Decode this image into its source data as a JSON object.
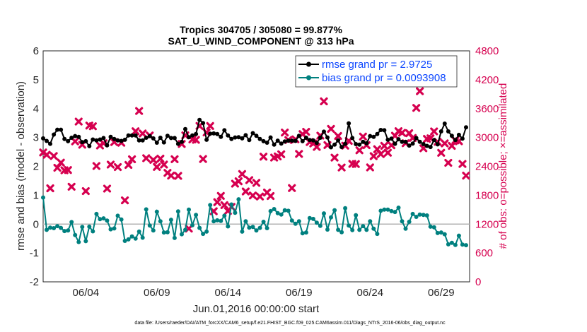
{
  "chart_data": {
    "type": "line",
    "title": "Tropics 304705 / 305080 = 99.877%",
    "subtitle": "SAT_U_WIND_COMPONENT @ 313 hPa",
    "xlabel": "Jun.01,2016 00:00:00 start",
    "ylabel": "rmse and bias (model - observation)",
    "ylabel_right": "# of obs: o=possible; ×=assimilated",
    "ylim": [
      -2,
      6
    ],
    "ylim_right": [
      0,
      4800
    ],
    "xlim": [
      1.0,
      31.0
    ],
    "y_ticks": [
      "-2",
      "-1",
      "0",
      "1",
      "2",
      "3",
      "4",
      "5",
      "6"
    ],
    "y_right_ticks": [
      "0",
      "600",
      "1200",
      "1800",
      "2400",
      "3000",
      "3600",
      "4200",
      "4800"
    ],
    "x_tick_labels": [
      "06/04",
      "06/09",
      "06/14",
      "06/19",
      "06/24",
      "06/29"
    ],
    "x_tick_values": [
      4,
      9,
      14,
      19,
      24,
      29
    ],
    "colors": {
      "rmse": "#000000",
      "bias": "#00807f",
      "obs": "#d6004f",
      "zero_line": "#b3b3b3",
      "legend_rmse_text": "#0d47ff",
      "legend_bias_text": "#0d47ff"
    },
    "series": [
      {
        "name": "rmse grand pr = 2.9725",
        "axis": "left",
        "marker": "circle",
        "x": [
          1.0,
          1.25,
          1.5,
          1.75,
          2.0,
          2.25,
          2.5,
          2.75,
          3.0,
          3.25,
          3.5,
          3.75,
          4.0,
          4.25,
          4.5,
          4.75,
          5.0,
          5.25,
          5.5,
          5.75,
          6.0,
          6.25,
          6.5,
          6.75,
          7.0,
          7.25,
          7.5,
          7.75,
          8.0,
          8.25,
          8.5,
          8.75,
          9.0,
          9.25,
          9.5,
          9.75,
          10.0,
          10.25,
          10.5,
          10.75,
          11.0,
          11.25,
          11.5,
          11.75,
          12.0,
          12.25,
          12.5,
          12.75,
          13.0,
          13.25,
          13.5,
          13.75,
          14.0,
          14.25,
          14.5,
          14.75,
          15.0,
          15.25,
          15.5,
          15.75,
          16.0,
          16.25,
          16.5,
          16.75,
          17.0,
          17.25,
          17.5,
          17.75,
          18.0,
          18.25,
          18.5,
          18.75,
          19.0,
          19.25,
          19.5,
          19.75,
          20.0,
          20.25,
          20.5,
          20.75,
          21.0,
          21.25,
          21.5,
          21.75,
          22.0,
          22.25,
          22.5,
          22.75,
          23.0,
          23.25,
          23.5,
          23.75,
          24.0,
          24.25,
          24.5,
          24.75,
          25.0,
          25.25,
          25.5,
          25.75,
          26.0,
          26.25,
          26.5,
          26.75,
          27.0,
          27.25,
          27.5,
          27.75,
          28.0,
          28.25,
          28.5,
          28.75,
          29.0,
          29.25,
          29.5,
          29.75,
          30.0,
          30.25,
          30.5,
          30.75
        ],
        "values": [
          2.97,
          2.88,
          2.78,
          3.1,
          3.27,
          3.27,
          2.95,
          2.87,
          2.99,
          3.05,
          3.02,
          2.84,
          2.87,
          2.7,
          2.93,
          2.9,
          2.93,
          2.98,
          2.73,
          3.02,
          2.95,
          2.9,
          2.88,
          2.92,
          3.07,
          3.07,
          3.07,
          2.9,
          2.9,
          2.99,
          3.05,
          2.97,
          2.82,
          2.99,
          2.83,
          3.06,
          2.98,
          2.98,
          2.78,
          2.85,
          3.29,
          3.01,
          3.07,
          3.12,
          3.61,
          3.5,
          2.92,
          3.13,
          3.14,
          3.12,
          3.02,
          3.25,
          3.07,
          2.95,
          3.0,
          3.01,
          2.97,
          3.08,
          2.91,
          3.15,
          3.06,
          2.95,
          2.87,
          2.82,
          3.0,
          2.75,
          2.89,
          2.79,
          2.86,
          2.89,
          2.89,
          2.88,
          3.06,
          2.87,
          2.99,
          2.91,
          2.9,
          2.81,
          2.99,
          3.2,
          3.0,
          2.66,
          2.75,
          2.9,
          2.67,
          2.78,
          3.49,
          2.98,
          2.77,
          2.75,
          2.85,
          2.8,
          3.05,
          3.02,
          3.12,
          3.26,
          3.25,
          2.92,
          2.96,
          2.78,
          2.94,
          2.85,
          2.85,
          2.72,
          2.79,
          2.98,
          2.85,
          2.77,
          2.71,
          2.67,
          2.91,
          2.76,
          3.21,
          3.48,
          3.21,
          3.06,
          2.91,
          3.09,
          2.96,
          3.35
        ]
      },
      {
        "name": "bias grand pr = 0.0093908",
        "axis": "left",
        "marker": "circle",
        "x": [
          1.0,
          1.25,
          1.5,
          1.75,
          2.0,
          2.25,
          2.5,
          2.75,
          3.0,
          3.25,
          3.5,
          3.75,
          4.0,
          4.25,
          4.5,
          4.75,
          5.0,
          5.25,
          5.5,
          5.75,
          6.0,
          6.25,
          6.5,
          6.75,
          7.0,
          7.25,
          7.5,
          7.75,
          8.0,
          8.25,
          8.5,
          8.75,
          9.0,
          9.25,
          9.5,
          9.75,
          10.0,
          10.25,
          10.5,
          10.75,
          11.0,
          11.25,
          11.5,
          11.75,
          12.0,
          12.25,
          12.5,
          12.75,
          13.0,
          13.25,
          13.5,
          13.75,
          14.0,
          14.25,
          14.5,
          14.75,
          15.0,
          15.25,
          15.5,
          15.75,
          16.0,
          16.25,
          16.5,
          16.75,
          17.0,
          17.25,
          17.5,
          17.75,
          18.0,
          18.25,
          18.5,
          18.75,
          19.0,
          19.25,
          19.5,
          19.75,
          20.0,
          20.25,
          20.5,
          20.75,
          21.0,
          21.25,
          21.5,
          21.75,
          22.0,
          22.25,
          22.5,
          22.75,
          23.0,
          23.25,
          23.5,
          23.75,
          24.0,
          24.25,
          24.5,
          24.75,
          25.0,
          25.25,
          25.5,
          25.75,
          26.0,
          26.25,
          26.5,
          26.75,
          27.0,
          27.25,
          27.5,
          27.75,
          28.0,
          28.25,
          28.5,
          28.75,
          29.0,
          29.25,
          29.5,
          29.75,
          30.0,
          30.25,
          30.5,
          30.75
        ],
        "values": [
          0.92,
          -0.2,
          -0.12,
          -0.14,
          -0.07,
          -0.13,
          -0.24,
          -0.22,
          0.07,
          -0.38,
          -0.62,
          -0.1,
          -0.59,
          -0.09,
          -0.25,
          0.35,
          0.17,
          0.2,
          0.12,
          -0.18,
          -0.15,
          0.29,
          0.16,
          -0.58,
          -0.53,
          -0.43,
          -0.5,
          -0.26,
          -0.47,
          0.51,
          -0.05,
          -0.22,
          0.43,
          0.1,
          -0.29,
          -0.28,
          0.15,
          -0.48,
          0.44,
          -0.35,
          -0.2,
          0.5,
          -0.04,
          0.32,
          -0.13,
          -0.34,
          -0.26,
          0.66,
          0.1,
          0.13,
          0.11,
          0.29,
          -0.08,
          0.68,
          0.39,
          0.86,
          -0.26,
          0.1,
          -0.12,
          -0.1,
          -0.22,
          -0.13,
          0.08,
          -0.14,
          0.45,
          0.52,
          0.38,
          0.33,
          0.48,
          0.46,
          0.12,
          0.01,
          0.1,
          -0.32,
          -0.29,
          0.21,
          0.18,
          0.05,
          -0.06,
          0.37,
          -0.19,
          0.23,
          0.48,
          -0.2,
          -0.28,
          0.55,
          -0.05,
          -0.21,
          0.31,
          -0.2,
          -0.07,
          -0.2,
          0.1,
          -0.16,
          -0.34,
          0.46,
          0.5,
          0.5,
          0.45,
          0.42,
          0.57,
          0.1,
          -0.16,
          0.08,
          0.35,
          0.25,
          0.33,
          0.32,
          0.3,
          -0.09,
          -0.11,
          -0.31,
          -0.29,
          -0.35,
          -0.7,
          -0.65,
          -0.72,
          -0.4,
          -0.71,
          -0.73
        ]
      },
      {
        "name": "# of obs assimilated",
        "axis": "right",
        "marker": "x",
        "x": [
          1.0,
          1.25,
          1.5,
          1.75,
          2.0,
          2.25,
          2.5,
          2.75,
          3.0,
          3.25,
          3.5,
          3.75,
          4.0,
          4.25,
          4.5,
          4.75,
          5.0,
          5.25,
          5.5,
          5.75,
          6.0,
          6.25,
          6.5,
          6.75,
          7.0,
          7.25,
          7.5,
          7.75,
          8.0,
          8.25,
          8.5,
          8.75,
          9.0,
          9.25,
          9.5,
          9.75,
          10.0,
          10.25,
          10.5,
          10.75,
          11.0,
          11.25,
          11.5,
          11.75,
          12.0,
          12.25,
          12.5,
          12.75,
          13.0,
          13.25,
          13.5,
          13.75,
          14.0,
          14.25,
          14.5,
          14.75,
          15.0,
          15.25,
          15.5,
          15.75,
          16.0,
          16.25,
          16.5,
          16.75,
          17.0,
          17.25,
          17.5,
          17.75,
          18.0,
          18.25,
          18.5,
          18.75,
          19.0,
          19.25,
          19.5,
          19.75,
          20.0,
          20.25,
          20.5,
          20.75,
          21.0,
          21.25,
          21.5,
          21.75,
          22.0,
          22.25,
          22.5,
          22.75,
          23.0,
          23.25,
          23.5,
          23.75,
          24.0,
          24.25,
          24.5,
          24.75,
          25.0,
          25.25,
          25.5,
          25.75,
          26.0,
          26.25,
          26.5,
          26.75,
          27.0,
          27.25,
          27.5,
          27.75,
          28.0,
          28.25,
          28.5,
          28.75,
          29.0,
          29.25,
          29.5,
          29.75,
          30.0,
          30.25,
          30.5,
          30.75
        ],
        "values": [
          2688,
          2641,
          1944,
          2614,
          2370,
          2477,
          2318,
          2323,
          1976,
          2919,
          3331,
          2849,
          1886,
          3247,
          3233,
          2407,
          2833,
          2880,
          1937,
          2436,
          2904,
          2385,
          2890,
          1693,
          2430,
          2547,
          3130,
          3551,
          3083,
          2569,
          3042,
          2534,
          2388,
          2560,
          2437,
          2265,
          2208,
          2548,
          2202,
          2865,
          3044,
          1106,
          2960,
          2951,
          3240,
          2553,
          3105,
          3239,
          1467,
          1656,
          1786,
          1594,
          1473,
          1557,
          2040,
          2090,
          2241,
          1878,
          2114,
          1794,
          2057,
          1773,
          2601,
          1856,
          1783,
          2582,
          2606,
          2651,
          3102,
          2947,
          1949,
          2961,
          2658,
          3070,
          3118,
          2905,
          2876,
          2804,
          3038,
          3751,
          2842,
          3178,
          2581,
          3032,
          2376,
          2829,
          2928,
          2452,
          2448,
          2734,
          3019,
          2841,
          2378,
          2612,
          2756,
          2655,
          2826,
          2683,
          2838,
          3037,
          3131,
          3097,
          2880,
          3089,
          2990,
          3614,
          3962,
          2776,
          2971,
          2983,
          3126,
          2910,
          2681,
          2877,
          2473,
          2825,
          2939,
          2922,
          2450,
          2207
        ]
      }
    ],
    "annotations": [
      "data file: /Users/raeder/DAI/ATM_forcXX/CAM6_setup/f.e21.FHIST_BGC.f09_025.CAM6assim.011/Diags_NTrS_2016-06/obs_diag_output.nc"
    ]
  }
}
